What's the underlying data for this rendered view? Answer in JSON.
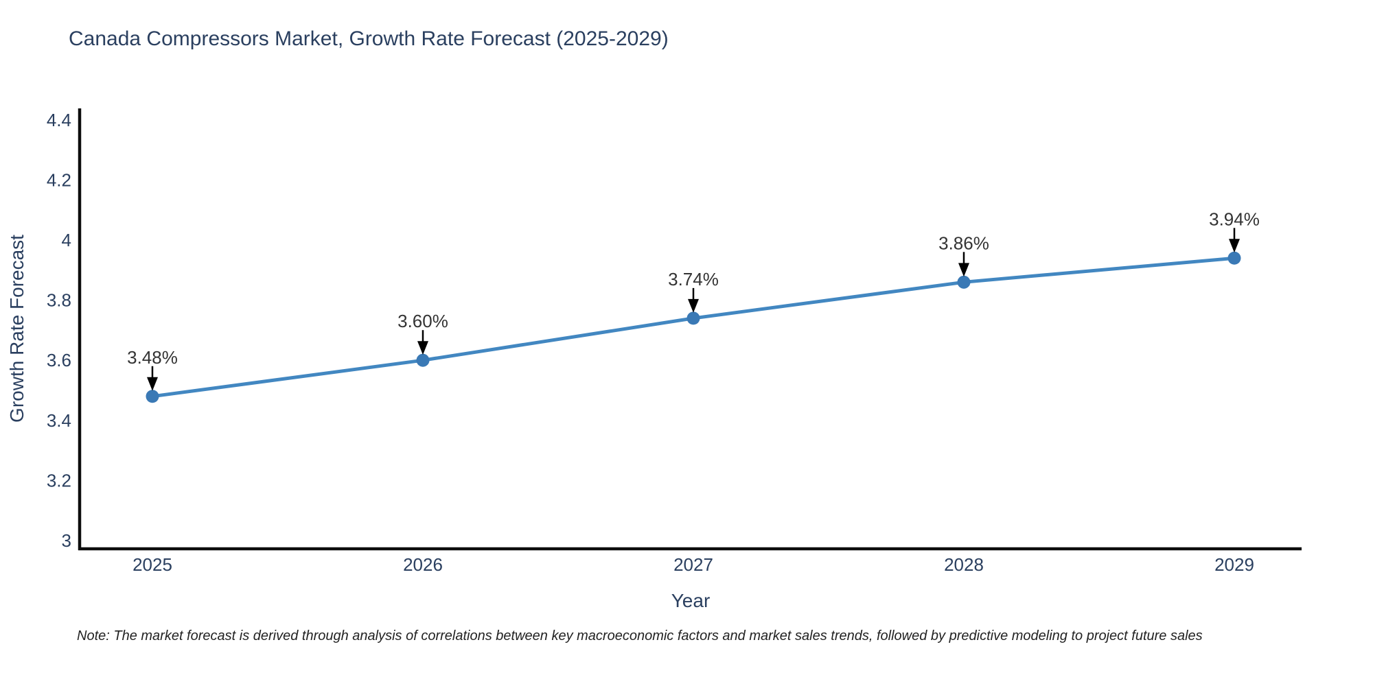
{
  "title": "Canada Compressors Market, Growth Rate Forecast (2025-2029)",
  "note": "Note: The market forecast is derived through analysis of correlations between key macroeconomic factors and market sales trends, followed by predictive modeling to project future sales",
  "colors": {
    "line": "#4287c1",
    "marker": "#3a79b5",
    "axis": "#0d0d0d",
    "arrow": "#000000",
    "title_text": "#2a3f5f",
    "tick_text": "#2a3f5f",
    "label_text": "#333333",
    "background": "#ffffff"
  },
  "chart_data": {
    "type": "line",
    "title": "Canada Compressors Market, Growth Rate Forecast (2025-2029)",
    "xlabel": "Year",
    "ylabel": "Growth Rate Forecast",
    "x": [
      2025,
      2026,
      2027,
      2028,
      2029
    ],
    "y": [
      3.48,
      3.6,
      3.74,
      3.86,
      3.94
    ],
    "point_labels": [
      "3.48%",
      "3.60%",
      "3.74%",
      "3.86%",
      "3.94%"
    ],
    "xtick_labels": [
      "2025",
      "2026",
      "2027",
      "2028",
      "2029"
    ],
    "yticks": [
      3,
      3.2,
      3.4,
      3.6,
      3.8,
      4,
      4.2,
      4.4
    ],
    "ytick_labels": [
      "3",
      "3.2",
      "3.4",
      "3.6",
      "3.8",
      "4",
      "4.2",
      "4.4"
    ],
    "ylim": [
      2.97,
      4.44
    ],
    "grid": false,
    "legend_position": "none",
    "annotation_style": "black-down-arrow-above-each-point"
  }
}
